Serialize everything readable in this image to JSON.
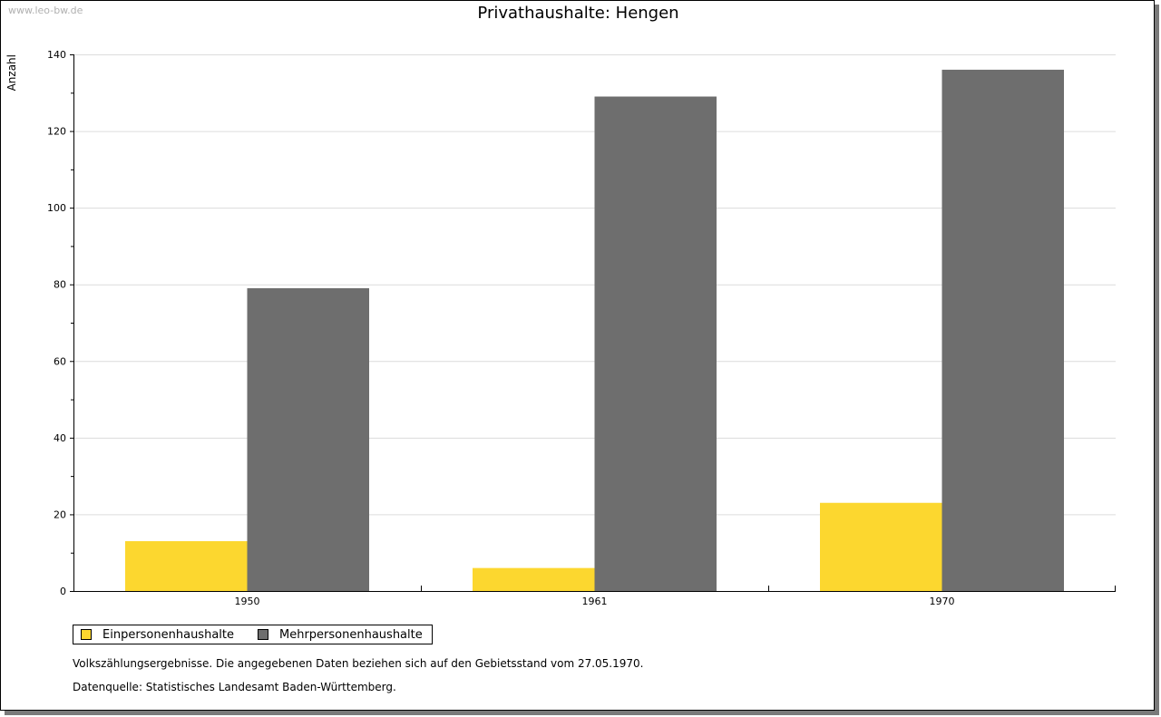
{
  "watermark": "www.leo-bw.de",
  "chart_data": {
    "type": "bar",
    "title": "Privathaushalte: Hengen",
    "ylabel": "Anzahl",
    "xlabel": "",
    "categories": [
      "1950",
      "1961",
      "1970"
    ],
    "series": [
      {
        "name": "Einpersonenhaushalte",
        "color": "#fcd72f",
        "values": [
          13,
          6,
          23
        ]
      },
      {
        "name": "Mehrpersonenhaushalte",
        "color": "#6e6e6e",
        "values": [
          79,
          129,
          136
        ]
      }
    ],
    "ylim": [
      0,
      140
    ],
    "yticks": [
      0,
      20,
      40,
      60,
      80,
      100,
      120,
      140
    ],
    "grid": true,
    "legend": "bottom-left"
  },
  "notes": {
    "line1": "Volkszählungsergebnisse. Die angegebenen Daten beziehen sich auf den Gebietsstand vom 27.05.1970.",
    "line2": "Datenquelle: Statistisches Landesamt Baden-Württemberg."
  }
}
